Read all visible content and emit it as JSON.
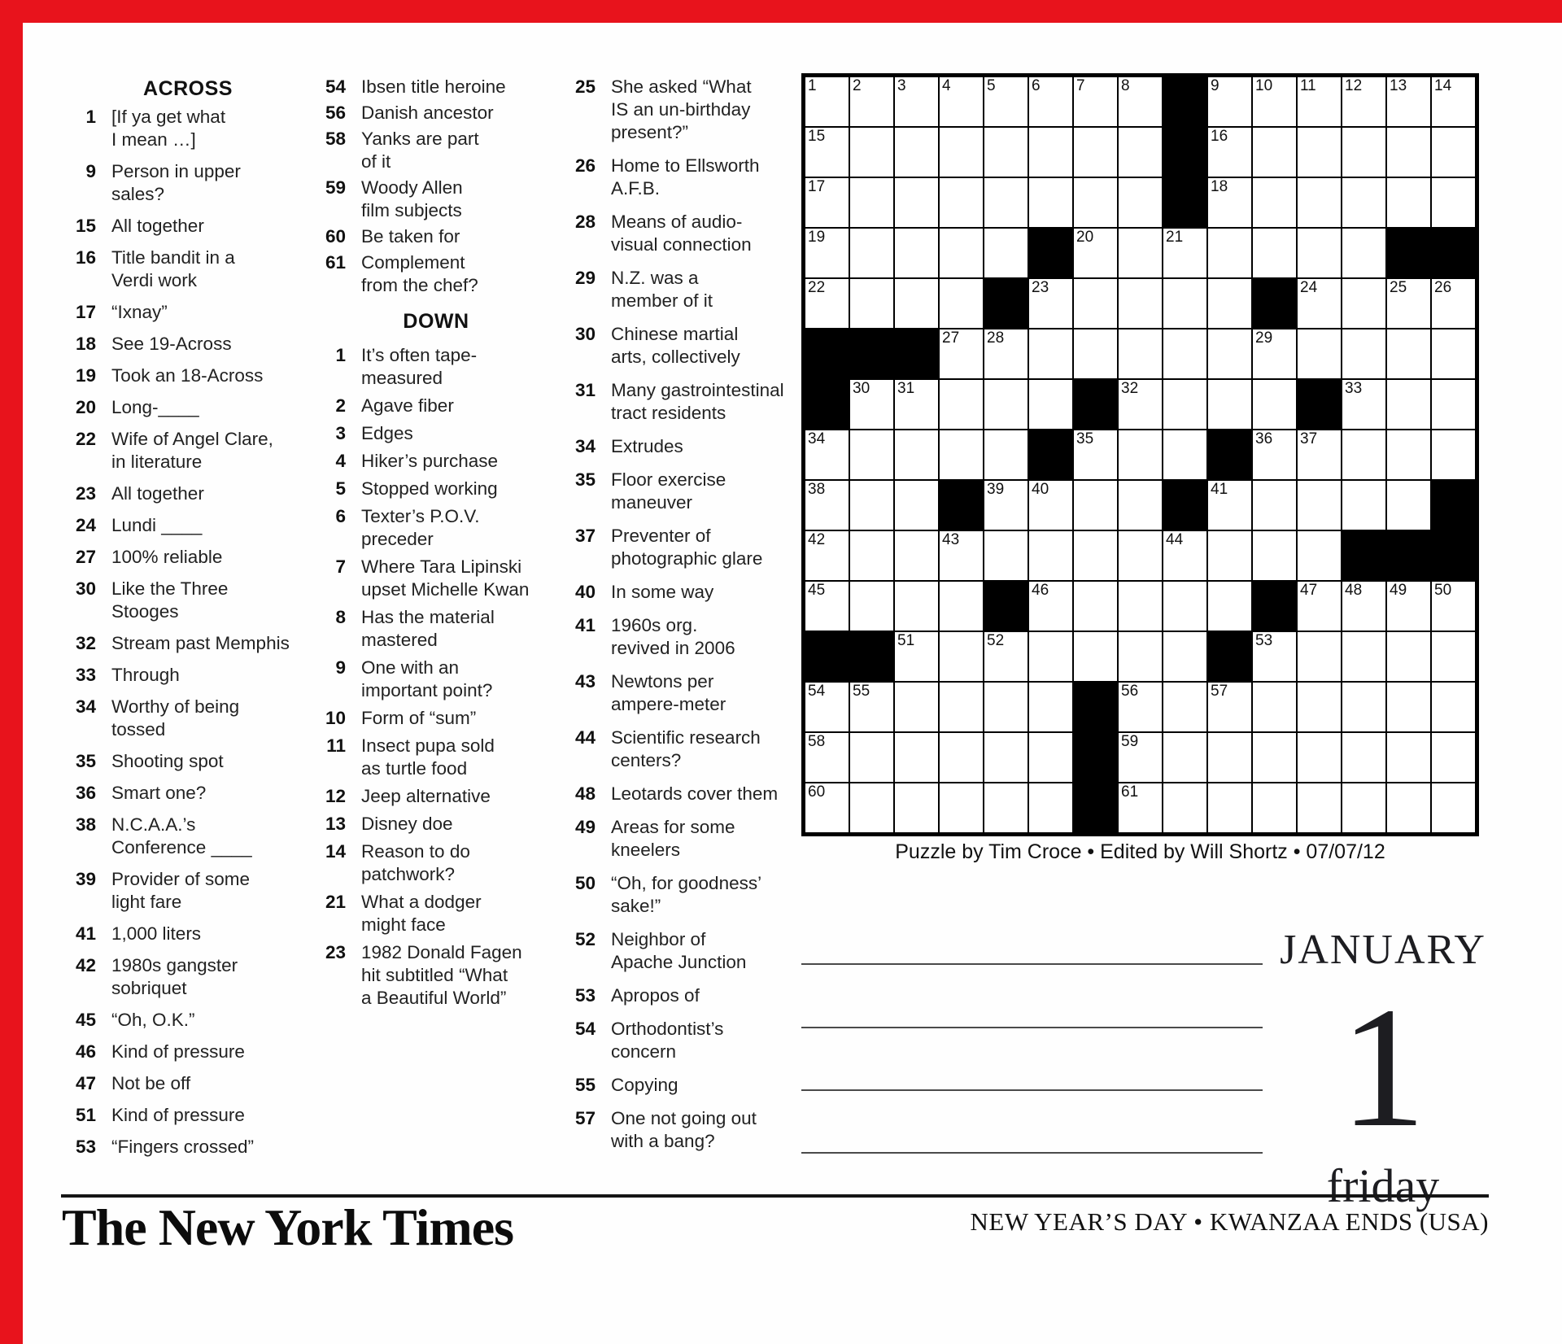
{
  "page": {
    "accent_red": "#e8131c",
    "paper": "#fefefe"
  },
  "across": {
    "title": "ACROSS",
    "col1": [
      {
        "num": "1",
        "text": "[If ya get what\nI mean …]"
      },
      {
        "num": "9",
        "text": "Person in upper\nsales?"
      },
      {
        "num": "15",
        "text": "All together"
      },
      {
        "num": "16",
        "text": "Title bandit in a\nVerdi work"
      },
      {
        "num": "17",
        "text": "“Ixnay”"
      },
      {
        "num": "18",
        "text": "See 19-Across"
      },
      {
        "num": "19",
        "text": "Took an 18-Across"
      },
      {
        "num": "20",
        "text": "Long-____"
      },
      {
        "num": "22",
        "text": "Wife of Angel Clare,\nin literature"
      },
      {
        "num": "23",
        "text": "All together"
      },
      {
        "num": "24",
        "text": "Lundi ____"
      },
      {
        "num": "27",
        "text": "100% reliable"
      },
      {
        "num": "30",
        "text": "Like the Three\nStooges"
      },
      {
        "num": "32",
        "text": "Stream past Memphis"
      },
      {
        "num": "33",
        "text": "Through"
      },
      {
        "num": "34",
        "text": "Worthy of being\ntossed"
      },
      {
        "num": "35",
        "text": "Shooting spot"
      },
      {
        "num": "36",
        "text": "Smart one?"
      },
      {
        "num": "38",
        "text": "N.C.A.A.’s\nConference ____"
      },
      {
        "num": "39",
        "text": "Provider of some\nlight fare"
      },
      {
        "num": "41",
        "text": "1,000 liters"
      },
      {
        "num": "42",
        "text": "1980s gangster\nsobriquet"
      },
      {
        "num": "45",
        "text": "“Oh, O.K.”"
      },
      {
        "num": "46",
        "text": "Kind of pressure"
      },
      {
        "num": "47",
        "text": "Not be off"
      },
      {
        "num": "51",
        "text": "Kind of pressure"
      },
      {
        "num": "53",
        "text": "“Fingers crossed”"
      }
    ],
    "col2": [
      {
        "num": "54",
        "text": "Ibsen title heroine"
      },
      {
        "num": "56",
        "text": "Danish ancestor"
      },
      {
        "num": "58",
        "text": "Yanks are part\nof it"
      },
      {
        "num": "59",
        "text": "Woody Allen\nfilm subjects"
      },
      {
        "num": "60",
        "text": "Be taken for"
      },
      {
        "num": "61",
        "text": "Complement\nfrom the chef?"
      }
    ]
  },
  "down": {
    "title": "DOWN",
    "col2": [
      {
        "num": "1",
        "text": "It’s often tape-\nmeasured"
      },
      {
        "num": "2",
        "text": "Agave fiber"
      },
      {
        "num": "3",
        "text": "Edges"
      },
      {
        "num": "4",
        "text": "Hiker’s purchase"
      },
      {
        "num": "5",
        "text": "Stopped working"
      },
      {
        "num": "6",
        "text": "Texter’s P.O.V.\npreceder"
      },
      {
        "num": "7",
        "text": "Where Tara Lipinski\nupset Michelle Kwan"
      },
      {
        "num": "8",
        "text": "Has the material\nmastered"
      },
      {
        "num": "9",
        "text": "One with an\nimportant point?"
      },
      {
        "num": "10",
        "text": "Form of “sum”"
      },
      {
        "num": "11",
        "text": "Insect pupa sold\nas turtle food"
      },
      {
        "num": "12",
        "text": "Jeep alternative"
      },
      {
        "num": "13",
        "text": "Disney doe"
      },
      {
        "num": "14",
        "text": "Reason to do\npatchwork?"
      },
      {
        "num": "21",
        "text": "What a dodger\nmight face"
      },
      {
        "num": "23",
        "text": "1982 Donald Fagen\nhit subtitled “What\na Beautiful World”"
      }
    ],
    "col3": [
      {
        "num": "25",
        "text": "She asked “What\nIS an un-birthday\npresent?”"
      },
      {
        "num": "26",
        "text": "Home to Ellsworth\nA.F.B."
      },
      {
        "num": "28",
        "text": "Means of audio-\nvisual connection"
      },
      {
        "num": "29",
        "text": "N.Z. was a\nmember of it"
      },
      {
        "num": "30",
        "text": "Chinese martial\narts, collectively"
      },
      {
        "num": "31",
        "text": "Many gastrointestinal\ntract residents"
      },
      {
        "num": "34",
        "text": "Extrudes"
      },
      {
        "num": "35",
        "text": "Floor exercise\nmaneuver"
      },
      {
        "num": "37",
        "text": "Preventer of\nphotographic glare"
      },
      {
        "num": "40",
        "text": "In some way"
      },
      {
        "num": "41",
        "text": "1960s org.\nrevived in 2006"
      },
      {
        "num": "43",
        "text": "Newtons per\nampere-meter"
      },
      {
        "num": "44",
        "text": "Scientific research\ncenters?"
      },
      {
        "num": "48",
        "text": "Leotards cover them"
      },
      {
        "num": "49",
        "text": "Areas for some\nkneelers"
      },
      {
        "num": "50",
        "text": "“Oh, for goodness’\nsake!”"
      },
      {
        "num": "52",
        "text": "Neighbor of\nApache Junction"
      },
      {
        "num": "53",
        "text": "Apropos of"
      },
      {
        "num": "54",
        "text": "Orthodontist’s\nconcern"
      },
      {
        "num": "55",
        "text": "Copying"
      },
      {
        "num": "57",
        "text": "One not going out\nwith a bang?"
      }
    ]
  },
  "grid": {
    "rows": 15,
    "cols": 15,
    "cells": [
      [
        "1",
        "2",
        "3",
        "4",
        "5",
        "6",
        "7",
        "8",
        "#",
        "9",
        "10",
        "11",
        "12",
        "13",
        "14"
      ],
      [
        "15",
        "",
        "",
        "",
        "",
        "",
        "",
        "",
        "#",
        "16",
        "",
        "",
        "",
        "",
        ""
      ],
      [
        "17",
        "",
        "",
        "",
        "",
        "",
        "",
        "",
        "#",
        "18",
        "",
        "",
        "",
        "",
        ""
      ],
      [
        "19",
        "",
        "",
        "",
        "",
        "#",
        "20",
        "",
        "21",
        "",
        "",
        "",
        "",
        "#",
        "#"
      ],
      [
        "22",
        "",
        "",
        "",
        "#",
        "23",
        "",
        "",
        "",
        "",
        "#",
        "24",
        "",
        "25",
        "26"
      ],
      [
        "#",
        "#",
        "#",
        "27",
        "28",
        "",
        "",
        "",
        "",
        "",
        "29",
        "",
        "",
        "",
        ""
      ],
      [
        "#",
        "30",
        "31",
        "",
        "",
        "",
        "#",
        "32",
        "",
        "",
        "",
        "#",
        "33",
        "",
        ""
      ],
      [
        "34",
        "",
        "",
        "",
        "",
        "#",
        "35",
        "",
        "",
        "#",
        "36",
        "37",
        "",
        "",
        ""
      ],
      [
        "38",
        "",
        "",
        "#",
        "39",
        "40",
        "",
        "",
        "#",
        "41",
        "",
        "",
        "",
        "",
        "#"
      ],
      [
        "42",
        "",
        "",
        "43",
        "",
        "",
        "",
        "",
        "44",
        "",
        "",
        "",
        "#",
        "#",
        "#"
      ],
      [
        "45",
        "",
        "",
        "",
        "#",
        "46",
        "",
        "",
        "",
        "",
        "#",
        "47",
        "48",
        "49",
        "50"
      ],
      [
        "#",
        "#",
        "51",
        "",
        "52",
        "",
        "",
        "",
        "",
        "#",
        "53",
        "",
        "",
        "",
        ""
      ],
      [
        "54",
        "55",
        "",
        "",
        "",
        "",
        "#",
        "56",
        "",
        "57",
        "",
        "",
        "",
        "",
        ""
      ],
      [
        "58",
        "",
        "",
        "",
        "",
        "",
        "#",
        "59",
        "",
        "",
        "",
        "",
        "",
        "",
        ""
      ],
      [
        "60",
        "",
        "",
        "",
        "",
        "",
        "#",
        "61",
        "",
        "",
        "",
        "",
        "",
        "",
        ""
      ]
    ]
  },
  "byline": "Puzzle by Tim Croce • Edited by Will Shortz • 07/07/12",
  "calendar": {
    "month": "JANUARY",
    "day": "1",
    "weekday": "friday"
  },
  "notes": {
    "line_count": 4
  },
  "footer": {
    "logo_text": "The New York Times",
    "holiday_text": "NEW YEAR’S DAY • KWANZAA ENDS (USA)"
  }
}
